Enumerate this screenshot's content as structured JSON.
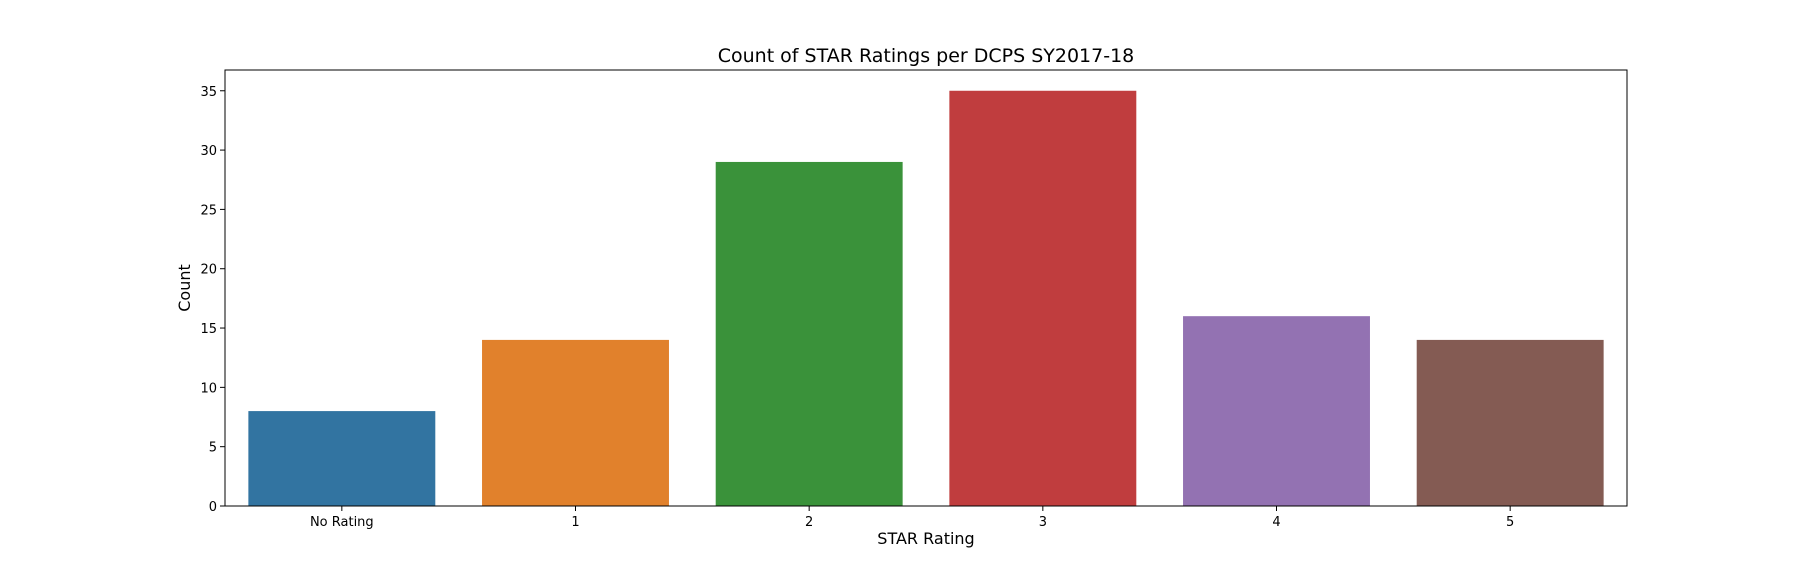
{
  "chart_data": {
    "type": "bar",
    "title": "Count of STAR Ratings per DCPS SY2017-18",
    "xlabel": "STAR Rating",
    "ylabel": "Count",
    "categories": [
      "No Rating",
      "1",
      "2",
      "3",
      "4",
      "5"
    ],
    "values": [
      8,
      14,
      29,
      35,
      16,
      14
    ],
    "colors": [
      "#3274a1",
      "#e1812c",
      "#3a923a",
      "#c03d3e",
      "#9372b2",
      "#845b53"
    ],
    "ylim": [
      0,
      36.75
    ],
    "yticks": [
      0,
      5,
      10,
      15,
      20,
      25,
      30,
      35
    ],
    "grid": false,
    "legend": "none"
  }
}
